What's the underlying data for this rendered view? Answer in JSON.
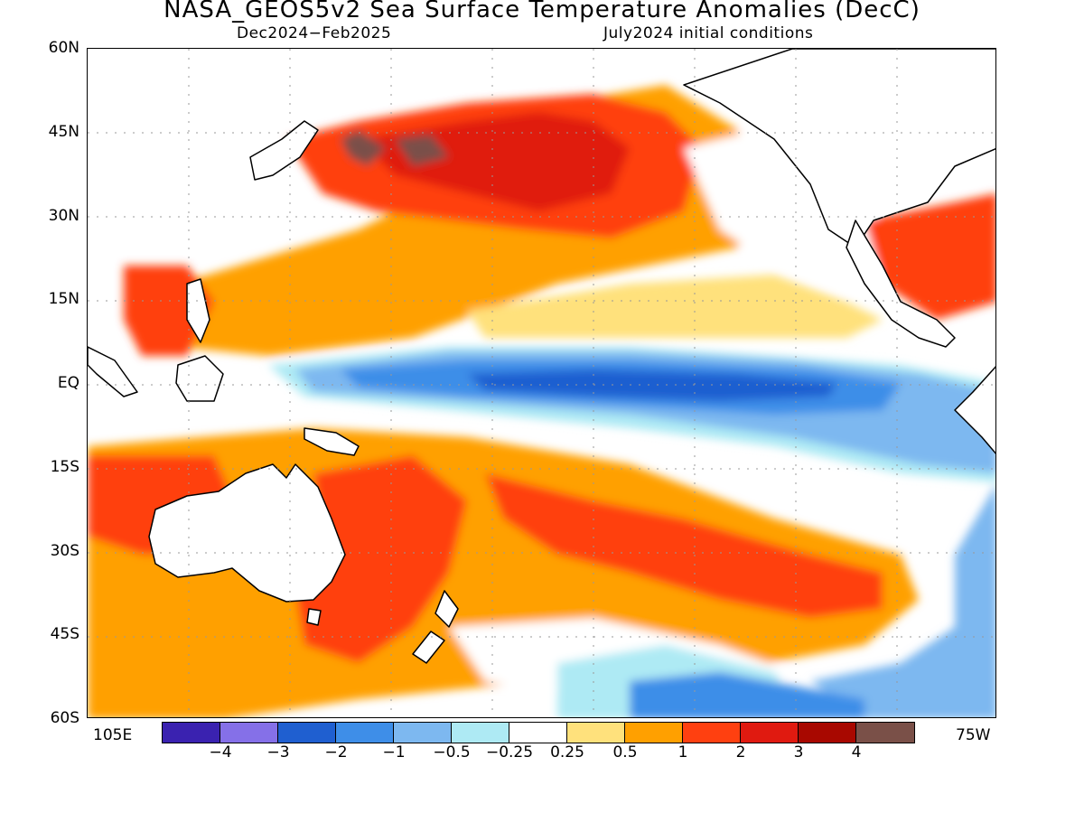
{
  "title": "NASA_GEOS5v2 Sea Surface Temperature Anomalies (DecC)",
  "subtitle_left": "Dec2024−Feb2025",
  "subtitle_right": "July2024 initial conditions",
  "latitude_labels": [
    "60N",
    "45N",
    "30N",
    "15N",
    "EQ",
    "15S",
    "30S",
    "45S",
    "60S"
  ],
  "longitude_labels": {
    "left": "105E",
    "right": "75W"
  },
  "colorbar": {
    "colors": [
      "#3a22b0",
      "#8570e8",
      "#1f5fd0",
      "#3e8ee8",
      "#7db8f0",
      "#aeeaf4",
      "#ffffff",
      "#ffe17c",
      "#ffa000",
      "#ff4010",
      "#e01a10",
      "#a80800",
      "#7a5048"
    ],
    "labels": [
      "−4",
      "−3",
      "−2",
      "−1",
      "−0.5",
      "−0.25",
      "0.25",
      "0.5",
      "1",
      "2",
      "3",
      "4"
    ]
  },
  "map_data": {
    "variable": "Sea Surface Temperature Anomalies",
    "units": "DecC",
    "lat_range": [
      -60,
      60
    ],
    "lon_range": [
      "105E",
      "75W"
    ],
    "grid": true,
    "features": [
      {
        "region": "Equatorial central-eastern Pacific",
        "anomaly": "-1 to -2"
      },
      {
        "region": "Western tropical Pacific / Maritime Continent",
        "anomaly": "0.5 to 2"
      },
      {
        "region": "North Pacific near Japan",
        "anomaly": "2 to 4+"
      },
      {
        "region": "Southwest Pacific / Tasman Sea",
        "anomaly": "1 to 3"
      },
      {
        "region": "Southeast Pacific off South America",
        "anomaly": "-0.25 to -1"
      }
    ]
  }
}
